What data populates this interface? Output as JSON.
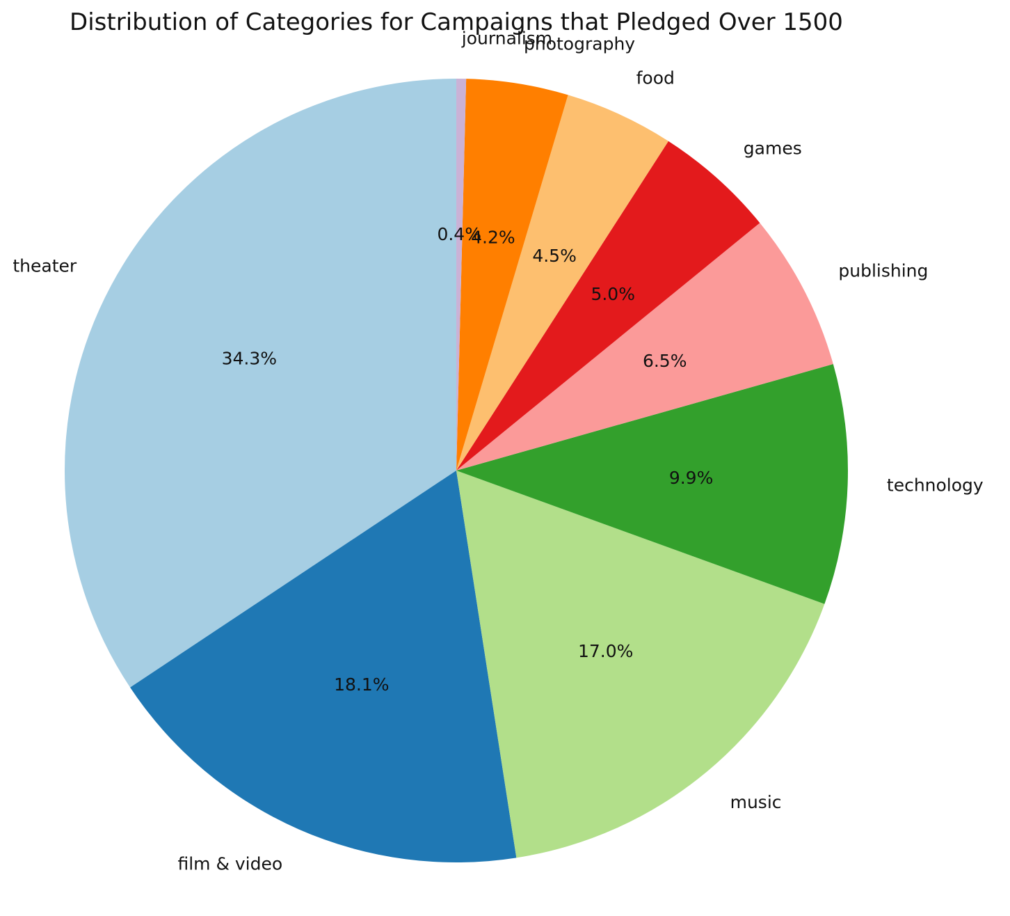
{
  "chart_data": {
    "type": "pie",
    "title": "Distribution of Categories for Campaigns that Pledged Over 1500",
    "start_angle_deg": 90,
    "direction": "counterclockwise",
    "slices": [
      {
        "label": "theater",
        "value": 34.3,
        "pct_label": "34.3%",
        "color": "#a6cee3"
      },
      {
        "label": "film & video",
        "value": 18.1,
        "pct_label": "18.1%",
        "color": "#1f78b4"
      },
      {
        "label": "music",
        "value": 17.0,
        "pct_label": "17.0%",
        "color": "#b2df8a"
      },
      {
        "label": "technology",
        "value": 9.9,
        "pct_label": "9.9%",
        "color": "#33a02c"
      },
      {
        "label": "publishing",
        "value": 6.5,
        "pct_label": "6.5%",
        "color": "#fb9a99"
      },
      {
        "label": "games",
        "value": 5.0,
        "pct_label": "5.0%",
        "color": "#e31a1c"
      },
      {
        "label": "food",
        "value": 4.5,
        "pct_label": "4.5%",
        "color": "#fdbf6f"
      },
      {
        "label": "photography",
        "value": 4.2,
        "pct_label": "4.2%",
        "color": "#ff7f00"
      },
      {
        "label": "journalism",
        "value": 0.4,
        "pct_label": "0.4%",
        "color": "#cab2d6"
      }
    ]
  }
}
